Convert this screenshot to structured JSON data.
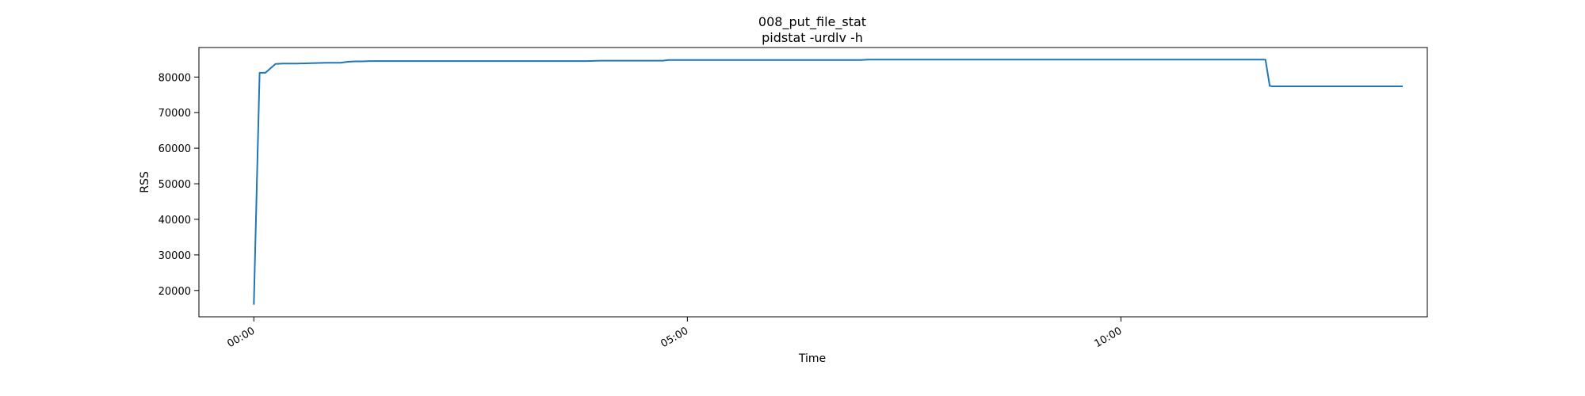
{
  "chart_data": {
    "type": "line",
    "title": "008_put_file_stat",
    "subtitle": "pidstat -urdlv -h",
    "xlabel": "Time",
    "ylabel": "RSS",
    "grid": false,
    "x_unit": "hh:mm",
    "xlim": [
      "-00:38",
      "13:32"
    ],
    "ylim": [
      12600,
      88300
    ],
    "x_ticks": [
      "00:00",
      "05:00",
      "10:00"
    ],
    "y_ticks": [
      20000,
      30000,
      40000,
      50000,
      60000,
      70000,
      80000
    ],
    "series": [
      {
        "color": "#1f77b4",
        "x": [
          "00:00",
          "00:04",
          "00:08",
          "00:15",
          "00:20",
          "00:30",
          "00:40",
          "00:50",
          "01:00",
          "01:05",
          "01:10",
          "01:15",
          "01:20",
          "01:30",
          "02:00",
          "03:00",
          "03:50",
          "04:00",
          "04:43",
          "04:47",
          "05:00",
          "06:00",
          "07:00",
          "07:05",
          "08:00",
          "09:00",
          "10:00",
          "11:00",
          "11:40",
          "11:43",
          "11:45",
          "12:00",
          "12:30",
          "13:00",
          "13:15"
        ],
        "y": [
          16000,
          81200,
          81200,
          83700,
          83800,
          83800,
          83900,
          84000,
          84000,
          84300,
          84400,
          84400,
          84500,
          84500,
          84500,
          84500,
          84500,
          84600,
          84600,
          84800,
          84800,
          84800,
          84800,
          84900,
          84900,
          84900,
          84900,
          84900,
          84900,
          77500,
          77400,
          77400,
          77400,
          77400,
          77400
        ]
      }
    ]
  }
}
